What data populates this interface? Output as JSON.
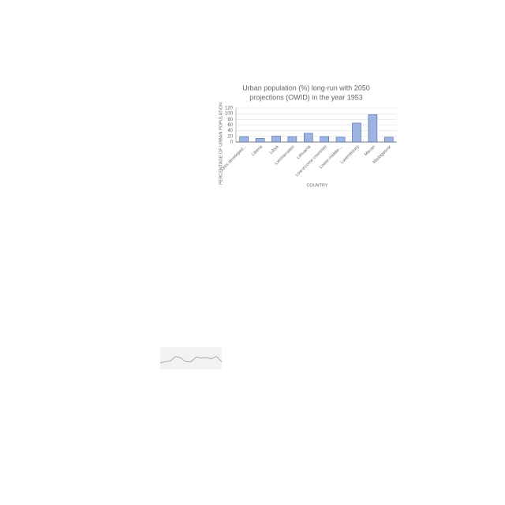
{
  "chart_data": [
    {
      "type": "bar",
      "title": [
        "Urban population (%) long-run with 2050",
        "projections (OWID) in the year 1953"
      ],
      "xlabel": "COUNTRY",
      "ylabel": "PERCENTAGE OF URBAN POPULATION",
      "categories": [
        "Less developed...",
        "Liberia",
        "Libya",
        "Liechtenstein",
        "Lithuania",
        "Low-income countries",
        "Lower-middle-...",
        "Luxembourg",
        "Macao",
        "Madagascar"
      ],
      "values": [
        19,
        13,
        21,
        19,
        31,
        19,
        17,
        67,
        97,
        17
      ],
      "color": "#9db3e0",
      "edge": "#4a6bb0",
      "ylim": [
        0,
        120
      ],
      "yticks": [
        0,
        20,
        40,
        60,
        80,
        100,
        120
      ],
      "grid": true
    },
    {
      "type": "line",
      "values": [
        30,
        34,
        38,
        58,
        52,
        34,
        34,
        55,
        50,
        52,
        48,
        58,
        34
      ],
      "color": "#999999",
      "ylim": [
        0,
        100
      ]
    }
  ]
}
